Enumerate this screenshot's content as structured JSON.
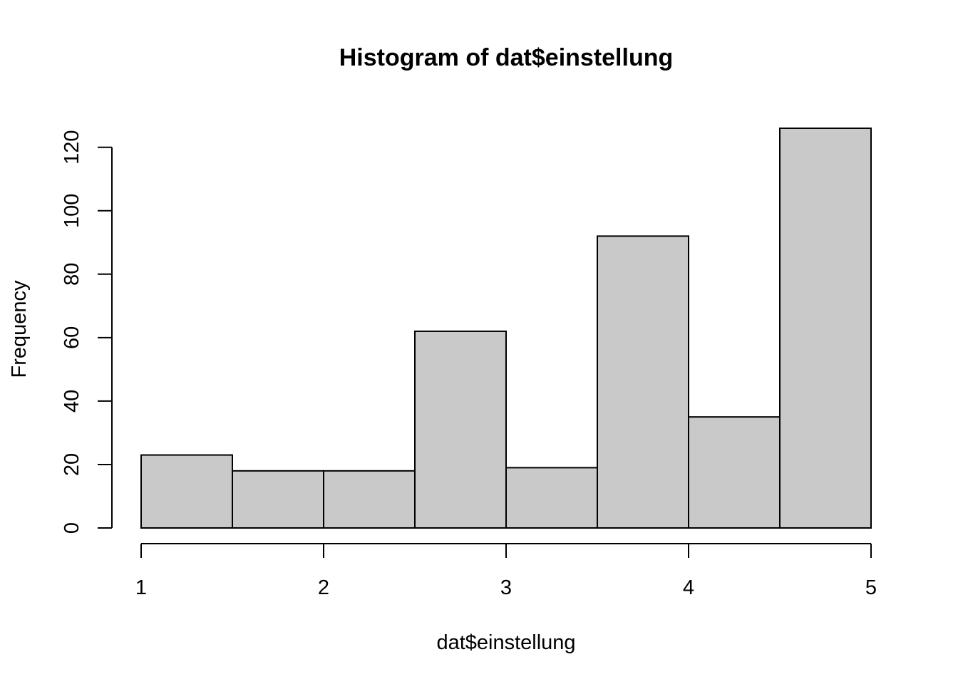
{
  "chart_data": {
    "type": "bar",
    "title": "Histogram of dat$einstellung",
    "xlabel": "dat$einstellung",
    "ylabel": "Frequency",
    "bins": [
      {
        "start": 1.0,
        "end": 1.5,
        "count": 23
      },
      {
        "start": 1.5,
        "end": 2.0,
        "count": 18
      },
      {
        "start": 2.0,
        "end": 2.5,
        "count": 18
      },
      {
        "start": 2.5,
        "end": 3.0,
        "count": 62
      },
      {
        "start": 3.0,
        "end": 3.5,
        "count": 19
      },
      {
        "start": 3.5,
        "end": 4.0,
        "count": 92
      },
      {
        "start": 4.0,
        "end": 4.5,
        "count": 35
      },
      {
        "start": 4.5,
        "end": 5.0,
        "count": 126
      }
    ],
    "xlim": [
      1,
      5
    ],
    "ylim": [
      0,
      126
    ],
    "xticks": [
      "1",
      "2",
      "3",
      "4",
      "5"
    ],
    "yticks": [
      "0",
      "20",
      "40",
      "60",
      "80",
      "100",
      "120"
    ],
    "grid": false,
    "legend": "none",
    "colors": {
      "bar_fill": "#c9c9c9",
      "bar_stroke": "#000000"
    }
  }
}
